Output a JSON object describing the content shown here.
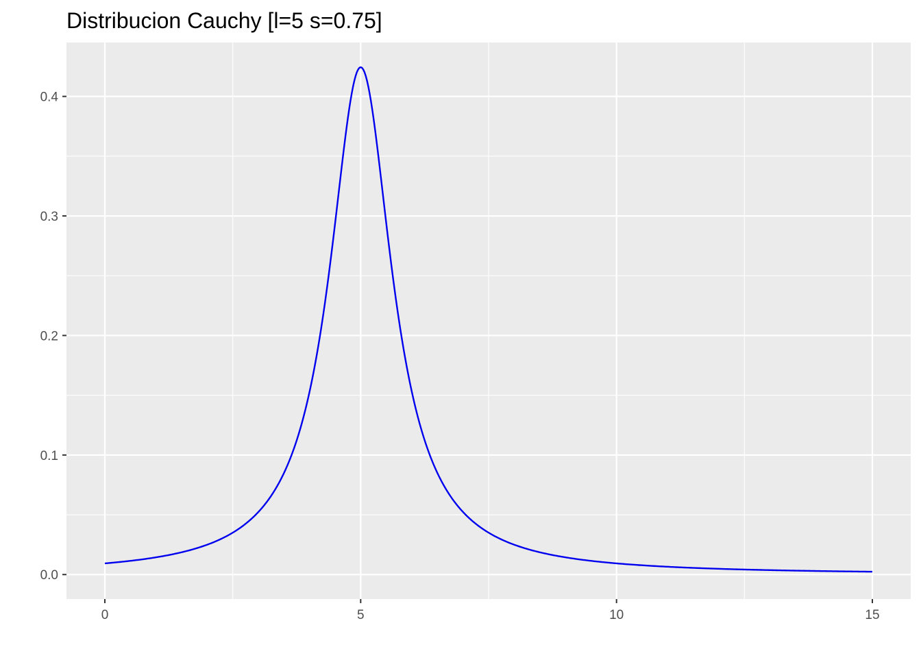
{
  "chart_data": {
    "type": "line",
    "title": "Distribucion Cauchy [l=5 s=0.75]",
    "xlabel": "",
    "ylabel": "",
    "distribution": {
      "family": "Cauchy",
      "location": 5,
      "scale": 0.75
    },
    "xlim": [
      -0.75,
      15.75
    ],
    "ylim": [
      -0.0205,
      0.4451
    ],
    "x_ticks": [
      0,
      5,
      10,
      15
    ],
    "x_tick_labels": [
      "0",
      "5",
      "10",
      "15"
    ],
    "x_minor_ticks": [
      2.5,
      7.5,
      12.5
    ],
    "y_ticks": [
      0.0,
      0.1,
      0.2,
      0.3,
      0.4
    ],
    "y_tick_labels": [
      "0.0",
      "0.1",
      "0.2",
      "0.3",
      "0.4"
    ],
    "y_minor_ticks": [
      0.05,
      0.15,
      0.25,
      0.35
    ],
    "grid": true,
    "legend": "none",
    "series": [
      {
        "color": "#0000ee",
        "x": [
          0,
          0.5,
          1,
          1.5,
          2,
          2.5,
          3,
          3.25,
          3.5,
          3.75,
          4,
          4.25,
          4.5,
          4.75,
          5,
          5.25,
          5.5,
          5.75,
          6,
          6.25,
          6.5,
          6.75,
          7,
          7.5,
          8,
          8.5,
          9,
          9.5,
          10,
          11,
          12,
          13,
          14,
          15
        ],
        "y": [
          0.0094,
          0.0115,
          0.0143,
          0.0185,
          0.025,
          0.0357,
          0.0523,
          0.0651,
          0.0849,
          0.1125,
          0.1528,
          0.2122,
          0.2938,
          0.382,
          0.4244,
          0.382,
          0.2938,
          0.2122,
          0.1528,
          0.1125,
          0.0849,
          0.0651,
          0.0523,
          0.0357,
          0.025,
          0.0185,
          0.0143,
          0.0115,
          0.0094,
          0.0066,
          0.0048,
          0.0037,
          0.0029,
          0.0024
        ]
      }
    ]
  }
}
